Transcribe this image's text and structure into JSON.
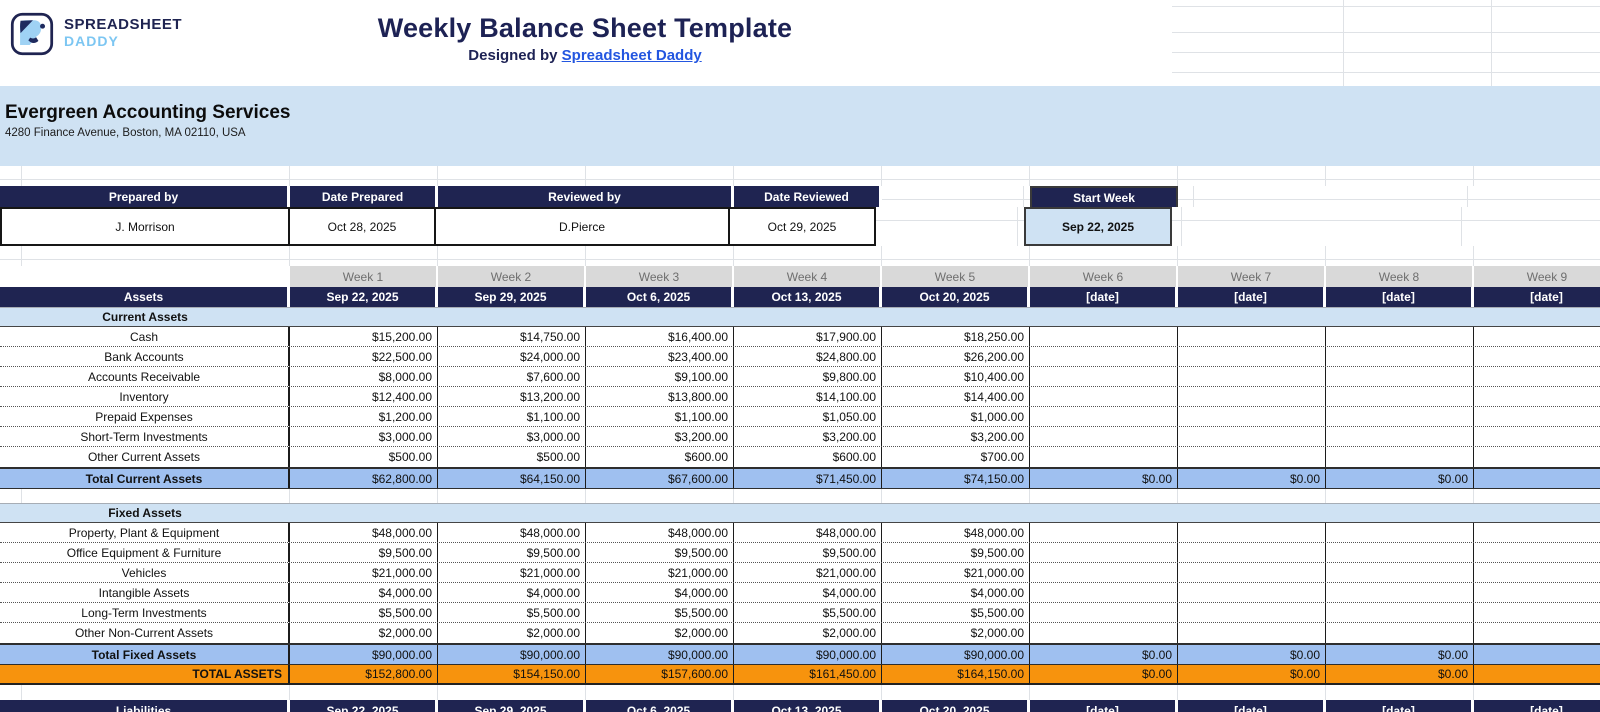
{
  "brand": {
    "line1": "SPREADSHEET",
    "line2": "DADDY"
  },
  "icons": {
    "logo": "spreadsheet-daddy-face-icon"
  },
  "header": {
    "title": "Weekly Balance Sheet Template",
    "subtitle_prefix": "Designed by ",
    "subtitle_link": "Spreadsheet Daddy"
  },
  "company": {
    "name": "Evergreen Accounting Services",
    "address": "4280 Finance Avenue, Boston, MA 02110, USA"
  },
  "prepared": {
    "prepared_by_label": "Prepared by",
    "prepared_by_value": "J. Morrison",
    "date_prepared_label": "Date Prepared",
    "date_prepared_value": "Oct 28, 2025",
    "reviewed_by_label": "Reviewed by",
    "reviewed_by_value": "D.Pierce",
    "date_reviewed_label": "Date Reviewed",
    "date_reviewed_value": "Oct 29, 2025",
    "start_week_label": "Start Week",
    "start_week_value": "Sep 22, 2025"
  },
  "weeks": {
    "labels": [
      "Week 1",
      "Week 2",
      "Week 3",
      "Week 4",
      "Week 5",
      "Week 6",
      "Week 7",
      "Week 8",
      "Week 9"
    ],
    "dates": [
      "Sep 22, 2025",
      "Sep 29, 2025",
      "Oct 6, 2025",
      "Oct 13, 2025",
      "Oct 20, 2025",
      "[date]",
      "[date]",
      "[date]",
      "[date]"
    ]
  },
  "assets": {
    "header_label": "Assets",
    "sections": [
      {
        "title": "Current Assets",
        "rows": [
          {
            "label": "Cash",
            "values": [
              "$15,200.00",
              "$14,750.00",
              "$16,400.00",
              "$17,900.00",
              "$18,250.00",
              "",
              "",
              "",
              ""
            ]
          },
          {
            "label": "Bank Accounts",
            "values": [
              "$22,500.00",
              "$24,000.00",
              "$23,400.00",
              "$24,800.00",
              "$26,200.00",
              "",
              "",
              "",
              ""
            ]
          },
          {
            "label": "Accounts Receivable",
            "values": [
              "$8,000.00",
              "$7,600.00",
              "$9,100.00",
              "$9,800.00",
              "$10,400.00",
              "",
              "",
              "",
              ""
            ]
          },
          {
            "label": "Inventory",
            "values": [
              "$12,400.00",
              "$13,200.00",
              "$13,800.00",
              "$14,100.00",
              "$14,400.00",
              "",
              "",
              "",
              ""
            ]
          },
          {
            "label": "Prepaid Expenses",
            "values": [
              "$1,200.00",
              "$1,100.00",
              "$1,100.00",
              "$1,050.00",
              "$1,000.00",
              "",
              "",
              "",
              ""
            ]
          },
          {
            "label": "Short-Term Investments",
            "values": [
              "$3,000.00",
              "$3,000.00",
              "$3,200.00",
              "$3,200.00",
              "$3,200.00",
              "",
              "",
              "",
              ""
            ]
          },
          {
            "label": "Other Current Assets",
            "values": [
              "$500.00",
              "$500.00",
              "$600.00",
              "$600.00",
              "$700.00",
              "",
              "",
              "",
              ""
            ]
          }
        ],
        "total": {
          "label": "Total Current Assets",
          "values": [
            "$62,800.00",
            "$64,150.00",
            "$67,600.00",
            "$71,450.00",
            "$74,150.00",
            "$0.00",
            "$0.00",
            "$0.00",
            ""
          ]
        }
      },
      {
        "title": "Fixed Assets",
        "rows": [
          {
            "label": "Property, Plant & Equipment",
            "values": [
              "$48,000.00",
              "$48,000.00",
              "$48,000.00",
              "$48,000.00",
              "$48,000.00",
              "",
              "",
              "",
              ""
            ]
          },
          {
            "label": "Office Equipment & Furniture",
            "values": [
              "$9,500.00",
              "$9,500.00",
              "$9,500.00",
              "$9,500.00",
              "$9,500.00",
              "",
              "",
              "",
              ""
            ]
          },
          {
            "label": "Vehicles",
            "values": [
              "$21,000.00",
              "$21,000.00",
              "$21,000.00",
              "$21,000.00",
              "$21,000.00",
              "",
              "",
              "",
              ""
            ]
          },
          {
            "label": "Intangible Assets",
            "values": [
              "$4,000.00",
              "$4,000.00",
              "$4,000.00",
              "$4,000.00",
              "$4,000.00",
              "",
              "",
              "",
              ""
            ]
          },
          {
            "label": "Long-Term Investments",
            "values": [
              "$5,500.00",
              "$5,500.00",
              "$5,500.00",
              "$5,500.00",
              "$5,500.00",
              "",
              "",
              "",
              ""
            ]
          },
          {
            "label": "Other Non-Current Assets",
            "values": [
              "$2,000.00",
              "$2,000.00",
              "$2,000.00",
              "$2,000.00",
              "$2,000.00",
              "",
              "",
              "",
              ""
            ]
          }
        ],
        "total": {
          "label": "Total Fixed Assets",
          "values": [
            "$90,000.00",
            "$90,000.00",
            "$90,000.00",
            "$90,000.00",
            "$90,000.00",
            "$0.00",
            "$0.00",
            "$0.00",
            ""
          ]
        }
      }
    ],
    "grand_total": {
      "label": "TOTAL ASSETS",
      "values": [
        "$152,800.00",
        "$154,150.00",
        "$157,600.00",
        "$161,450.00",
        "$164,150.00",
        "$0.00",
        "$0.00",
        "$0.00",
        ""
      ]
    }
  },
  "liabilities": {
    "header_label": "Liabilities"
  },
  "colors": {
    "navy": "#1f2451",
    "light_blue": "#cfe2f3",
    "total_row_blue": "#9fc0f0",
    "total_assets_orange": "#f7930d",
    "week_label_gray": "#d9d9d9",
    "link_blue": "#2356e0",
    "brand_light_blue": "#7cc6f2"
  }
}
